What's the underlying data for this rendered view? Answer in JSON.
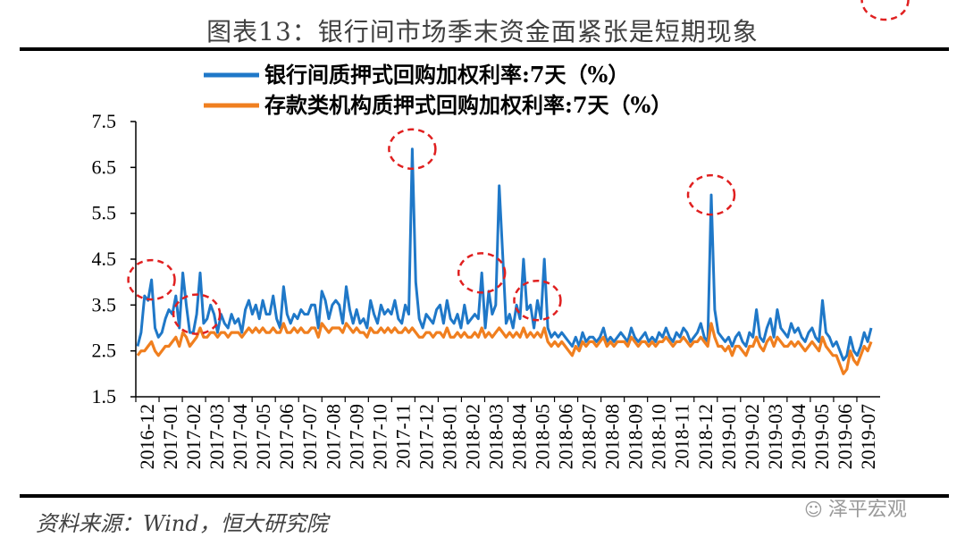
{
  "title": "图表13：银行间市场季末资金面紧张是短期现象",
  "source": "资料来源：Wind，恒大研究院",
  "watermark": "泽平宏观",
  "chart_data": {
    "type": "line",
    "ylim": [
      1.5,
      7.5
    ],
    "yticks": [
      "7.5",
      "6.5",
      "5.5",
      "4.5",
      "3.5",
      "2.5",
      "1.5"
    ],
    "yticks_num": [
      7.5,
      6.5,
      5.5,
      4.5,
      3.5,
      2.5,
      1.5
    ],
    "x_labels": [
      "2016-12",
      "2017-01",
      "2017-02",
      "2017-03",
      "2017-04",
      "2017-05",
      "2017-06",
      "2017-07",
      "2017-08",
      "2017-09",
      "2017-10",
      "2017-11",
      "2017-12",
      "2018-01",
      "2018-02",
      "2018-03",
      "2018-04",
      "2018-05",
      "2018-06",
      "2018-07",
      "2018-08",
      "2018-09",
      "2018-10",
      "2018-11",
      "2018-12",
      "2019-01",
      "2019-02",
      "2019-03",
      "2019-04",
      "2019-05",
      "2019-06",
      "2019-07"
    ],
    "legend_placement": "top",
    "grid": false,
    "series": [
      {
        "name": "银行间质押式回购加权利率:7天（%）",
        "color": "#1f78c8",
        "values": [
          2.6,
          2.9,
          3.7,
          3.6,
          4.05,
          3.0,
          2.8,
          2.9,
          3.2,
          3.4,
          3.3,
          3.7,
          3.0,
          4.2,
          3.5,
          2.9,
          2.9,
          3.3,
          4.2,
          3.1,
          3.2,
          3.5,
          3.3,
          2.9,
          3.3,
          3.1,
          3.0,
          3.3,
          3.1,
          3.2,
          2.9,
          3.4,
          3.6,
          3.3,
          3.5,
          3.2,
          3.6,
          3.3,
          3.3,
          3.7,
          3.2,
          3.0,
          3.9,
          3.3,
          3.1,
          3.3,
          3.2,
          3.4,
          3.3,
          3.3,
          3.5,
          3.5,
          3.0,
          3.8,
          3.6,
          3.2,
          3.5,
          3.6,
          3.5,
          3.1,
          3.9,
          3.4,
          3.1,
          3.4,
          3.1,
          3.2,
          3.0,
          3.6,
          3.3,
          3.1,
          3.5,
          3.3,
          3.4,
          3.3,
          3.6,
          3.2,
          3.1,
          3.5,
          3.3,
          6.9,
          4.0,
          3.2,
          3.0,
          3.3,
          3.2,
          3.1,
          3.4,
          3.5,
          3.1,
          3.6,
          3.2,
          3.1,
          3.3,
          3.0,
          3.5,
          3.1,
          3.2,
          3.3,
          3.2,
          4.2,
          3.0,
          3.8,
          3.3,
          3.5,
          6.1,
          4.6,
          3.1,
          3.3,
          3.0,
          3.5,
          3.2,
          4.5,
          3.4,
          3.5,
          3.0,
          3.6,
          3.2,
          4.5,
          3.0,
          2.8,
          2.9,
          2.8,
          2.9,
          2.8,
          2.7,
          2.6,
          2.8,
          2.6,
          2.9,
          2.7,
          2.8,
          2.8,
          2.7,
          2.8,
          3.0,
          2.7,
          2.8,
          2.7,
          2.8,
          2.9,
          2.8,
          2.7,
          3.0,
          2.8,
          2.7,
          2.8,
          2.9,
          2.7,
          2.8,
          2.7,
          2.9,
          2.8,
          3.0,
          2.8,
          2.7,
          2.9,
          2.8,
          3.0,
          2.9,
          2.7,
          2.8,
          2.9,
          3.1,
          2.8,
          2.7,
          5.9,
          3.4,
          2.9,
          2.8,
          2.7,
          2.8,
          2.6,
          2.8,
          2.9,
          2.7,
          2.6,
          2.9,
          2.8,
          3.4,
          2.8,
          2.7,
          3.0,
          3.2,
          2.8,
          3.4,
          3.0,
          2.9,
          2.8,
          3.1,
          2.9,
          3.0,
          2.8,
          2.7,
          2.9,
          3.0,
          2.8,
          2.7,
          3.6,
          2.9,
          2.8,
          2.6,
          2.7,
          2.5,
          2.3,
          2.4,
          2.8,
          2.5,
          2.4,
          2.6,
          2.9,
          2.7,
          3.0
        ],
        "peaks_note": "spikes at year-end / quarter-end"
      },
      {
        "name": "存款类机构质押式回购加权利率:7天（%）",
        "color": "#f07f1f",
        "values": [
          2.4,
          2.5,
          2.5,
          2.6,
          2.7,
          2.5,
          2.4,
          2.5,
          2.6,
          2.6,
          2.7,
          2.8,
          2.6,
          2.9,
          2.8,
          2.6,
          2.7,
          2.8,
          3.0,
          2.8,
          2.8,
          2.9,
          2.9,
          2.8,
          2.9,
          2.9,
          2.8,
          2.9,
          2.9,
          2.9,
          2.8,
          2.9,
          3.0,
          2.9,
          3.0,
          2.9,
          3.0,
          2.9,
          2.9,
          3.0,
          2.9,
          2.9,
          3.1,
          2.9,
          2.9,
          3.0,
          2.9,
          3.0,
          2.9,
          2.9,
          3.0,
          3.0,
          2.8,
          3.1,
          3.0,
          2.9,
          3.0,
          3.0,
          3.0,
          2.9,
          3.1,
          3.0,
          2.9,
          3.0,
          2.9,
          2.9,
          2.8,
          3.0,
          2.9,
          2.9,
          3.0,
          2.9,
          3.0,
          2.9,
          3.0,
          2.9,
          2.9,
          3.0,
          2.9,
          3.0,
          2.9,
          2.8,
          2.8,
          2.9,
          2.9,
          2.8,
          2.9,
          2.9,
          2.8,
          3.0,
          2.8,
          2.8,
          2.9,
          2.8,
          2.9,
          2.8,
          2.8,
          2.9,
          2.8,
          3.0,
          2.8,
          2.9,
          2.8,
          2.9,
          3.0,
          2.9,
          2.8,
          2.9,
          2.8,
          2.9,
          2.8,
          3.0,
          2.8,
          2.9,
          2.8,
          2.9,
          2.8,
          3.0,
          2.7,
          2.6,
          2.7,
          2.6,
          2.7,
          2.6,
          2.5,
          2.4,
          2.6,
          2.5,
          2.7,
          2.6,
          2.7,
          2.7,
          2.6,
          2.7,
          2.8,
          2.6,
          2.7,
          2.6,
          2.7,
          2.7,
          2.7,
          2.6,
          2.8,
          2.7,
          2.6,
          2.7,
          2.7,
          2.6,
          2.7,
          2.6,
          2.7,
          2.7,
          2.8,
          2.7,
          2.6,
          2.7,
          2.7,
          2.8,
          2.7,
          2.6,
          2.7,
          2.7,
          2.8,
          2.7,
          2.6,
          3.1,
          2.8,
          2.6,
          2.6,
          2.5,
          2.6,
          2.4,
          2.6,
          2.6,
          2.5,
          2.4,
          2.6,
          2.6,
          2.8,
          2.6,
          2.5,
          2.7,
          2.8,
          2.6,
          2.8,
          2.7,
          2.6,
          2.6,
          2.7,
          2.6,
          2.7,
          2.6,
          2.5,
          2.6,
          2.7,
          2.6,
          2.5,
          2.8,
          2.6,
          2.5,
          2.4,
          2.4,
          2.2,
          2.0,
          2.1,
          2.5,
          2.3,
          2.2,
          2.4,
          2.6,
          2.5,
          2.7
        ]
      }
    ],
    "annotations": [
      {
        "type": "dashed-ellipse",
        "color": "#e02020",
        "at_index": 4
      },
      {
        "type": "dashed-ellipse",
        "color": "#e02020",
        "at_index": 17
      },
      {
        "type": "dashed-ellipse",
        "color": "#e02020",
        "at_index": 79
      },
      {
        "type": "dashed-ellipse",
        "color": "#e02020",
        "at_index": 99
      },
      {
        "type": "dashed-ellipse",
        "color": "#e02020",
        "at_index": 115
      },
      {
        "type": "dashed-ellipse",
        "color": "#e02020",
        "at_index": 165
      },
      {
        "type": "dashed-ellipse",
        "color": "#e02020",
        "at_index": 215
      }
    ]
  }
}
